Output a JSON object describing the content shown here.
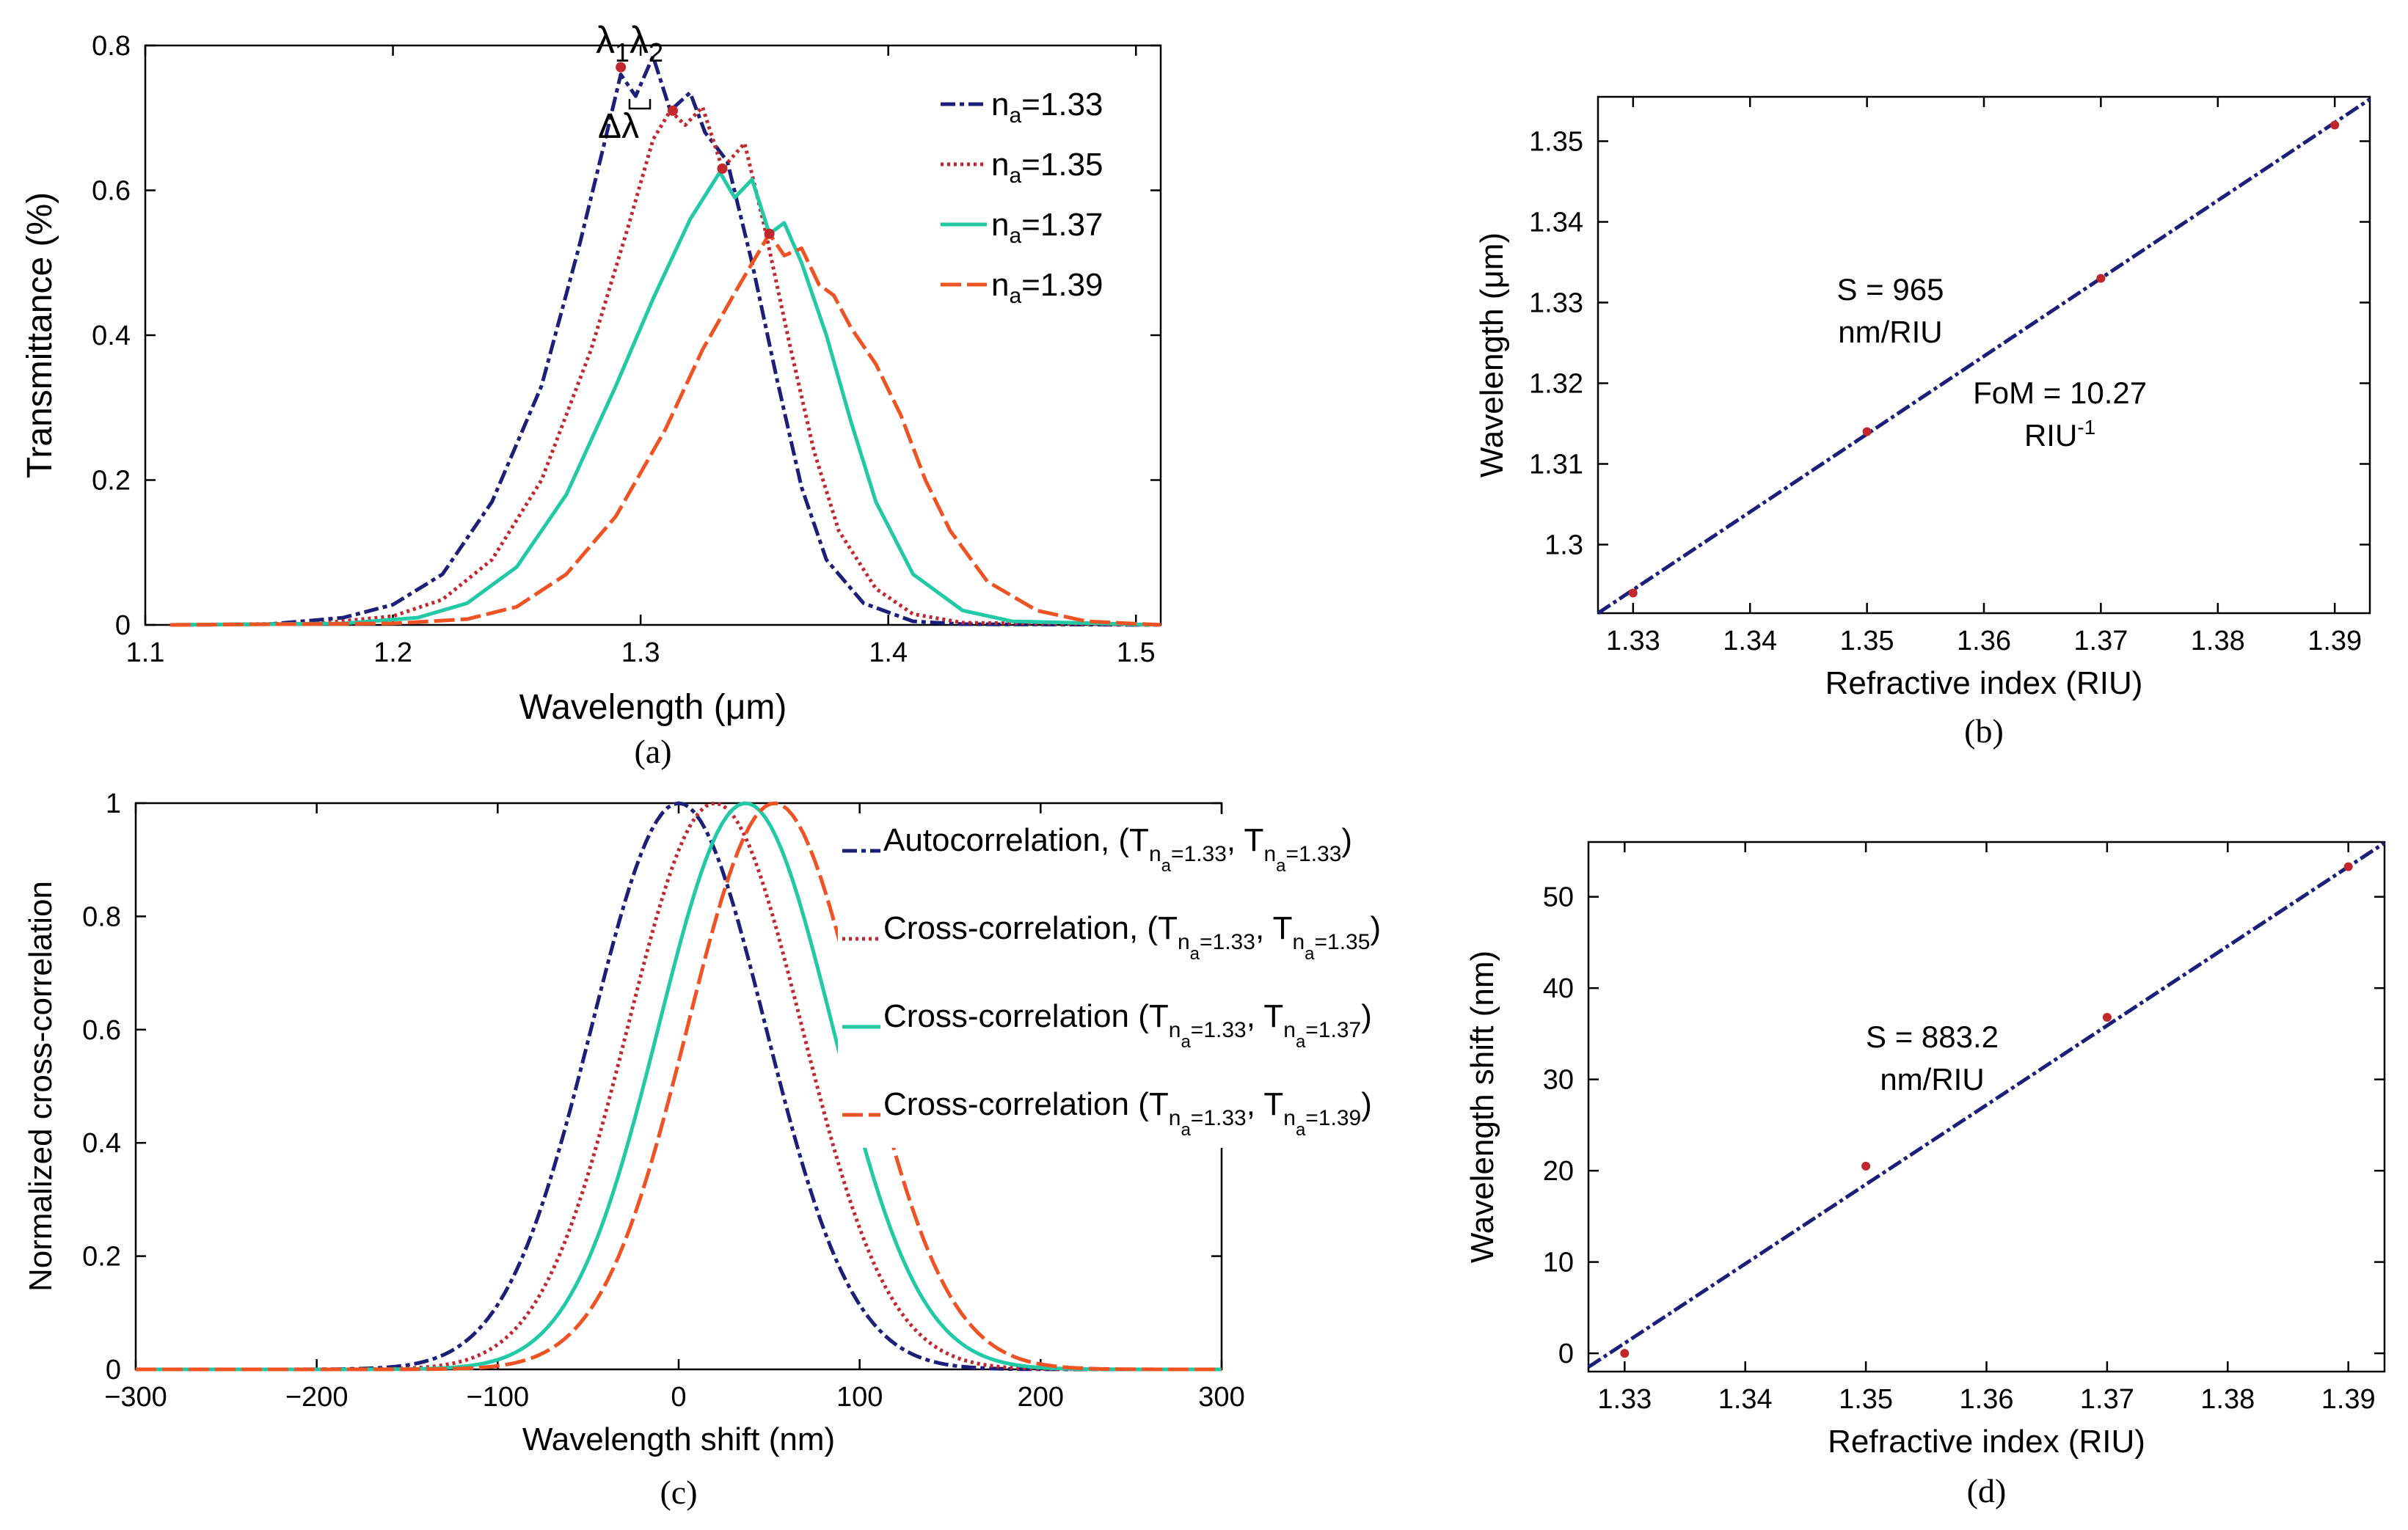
{
  "chart_data": [
    {
      "id": "a",
      "type": "line",
      "caption": "(a)",
      "xlabel": "Wavelength (μm)",
      "ylabel": "Transmittance (%)",
      "xlim": [
        1.1,
        1.51
      ],
      "ylim": [
        0,
        0.8
      ],
      "xticks": [
        1.1,
        1.2,
        1.3,
        1.4,
        1.5
      ],
      "yticks": [
        0,
        0.2,
        0.4,
        0.6,
        0.8
      ],
      "legend": {
        "position": "top-right"
      },
      "series": [
        {
          "name": "n=1.33",
          "label": {
            "base": "n",
            "sub": "a",
            "rest": "=1.33"
          },
          "color": "#1b1f7a",
          "dash": "20 6 6 6",
          "points": [
            [
              1.11,
              0
            ],
            [
              1.15,
              0.001
            ],
            [
              1.18,
              0.01
            ],
            [
              1.2,
              0.028
            ],
            [
              1.22,
              0.07
            ],
            [
              1.24,
              0.17
            ],
            [
              1.26,
              0.33
            ],
            [
              1.275,
              0.52
            ],
            [
              1.285,
              0.66
            ],
            [
              1.292,
              0.76
            ],
            [
              1.298,
              0.73
            ],
            [
              1.305,
              0.785
            ],
            [
              1.312,
              0.71
            ],
            [
              1.32,
              0.735
            ],
            [
              1.326,
              0.68
            ],
            [
              1.335,
              0.64
            ],
            [
              1.345,
              0.5
            ],
            [
              1.355,
              0.34
            ],
            [
              1.365,
              0.19
            ],
            [
              1.375,
              0.09
            ],
            [
              1.39,
              0.03
            ],
            [
              1.41,
              0.005
            ],
            [
              1.43,
              0.001
            ],
            [
              1.51,
              0
            ]
          ]
        },
        {
          "name": "n=1.35",
          "label": {
            "base": "n",
            "sub": "a",
            "rest": "=1.35"
          },
          "color": "#c1272d",
          "dash": "4 5",
          "points": [
            [
              1.11,
              0
            ],
            [
              1.17,
              0.002
            ],
            [
              1.2,
              0.012
            ],
            [
              1.22,
              0.035
            ],
            [
              1.24,
              0.09
            ],
            [
              1.26,
              0.2
            ],
            [
              1.28,
              0.38
            ],
            [
              1.295,
              0.55
            ],
            [
              1.305,
              0.67
            ],
            [
              1.312,
              0.71
            ],
            [
              1.318,
              0.69
            ],
            [
              1.325,
              0.715
            ],
            [
              1.333,
              0.63
            ],
            [
              1.342,
              0.665
            ],
            [
              1.35,
              0.55
            ],
            [
              1.36,
              0.39
            ],
            [
              1.37,
              0.24
            ],
            [
              1.38,
              0.13
            ],
            [
              1.395,
              0.05
            ],
            [
              1.41,
              0.015
            ],
            [
              1.43,
              0.003
            ],
            [
              1.51,
              0
            ]
          ]
        },
        {
          "name": "n=1.37",
          "label": {
            "base": "n",
            "sub": "a",
            "rest": "=1.37"
          },
          "color": "#22c9a6",
          "dash": "",
          "points": [
            [
              1.11,
              0
            ],
            [
              1.18,
              0.002
            ],
            [
              1.21,
              0.01
            ],
            [
              1.23,
              0.03
            ],
            [
              1.25,
              0.08
            ],
            [
              1.27,
              0.18
            ],
            [
              1.29,
              0.33
            ],
            [
              1.305,
              0.45
            ],
            [
              1.32,
              0.56
            ],
            [
              1.332,
              0.625
            ],
            [
              1.338,
              0.59
            ],
            [
              1.345,
              0.615
            ],
            [
              1.352,
              0.54
            ],
            [
              1.358,
              0.555
            ],
            [
              1.365,
              0.5
            ],
            [
              1.375,
              0.4
            ],
            [
              1.385,
              0.28
            ],
            [
              1.395,
              0.17
            ],
            [
              1.41,
              0.07
            ],
            [
              1.43,
              0.02
            ],
            [
              1.45,
              0.005
            ],
            [
              1.51,
              0
            ]
          ]
        },
        {
          "name": "n=1.39",
          "label": {
            "base": "n",
            "sub": "a",
            "rest": "=1.39"
          },
          "color": "#f05323",
          "dash": "28 8",
          "points": [
            [
              1.11,
              0
            ],
            [
              1.2,
              0.002
            ],
            [
              1.23,
              0.008
            ],
            [
              1.25,
              0.025
            ],
            [
              1.27,
              0.07
            ],
            [
              1.29,
              0.15
            ],
            [
              1.31,
              0.27
            ],
            [
              1.325,
              0.38
            ],
            [
              1.34,
              0.47
            ],
            [
              1.352,
              0.54
            ],
            [
              1.358,
              0.51
            ],
            [
              1.365,
              0.52
            ],
            [
              1.372,
              0.47
            ],
            [
              1.378,
              0.455
            ],
            [
              1.385,
              0.41
            ],
            [
              1.395,
              0.36
            ],
            [
              1.405,
              0.29
            ],
            [
              1.415,
              0.2
            ],
            [
              1.425,
              0.13
            ],
            [
              1.44,
              0.06
            ],
            [
              1.46,
              0.02
            ],
            [
              1.48,
              0.005
            ],
            [
              1.51,
              0
            ]
          ]
        }
      ],
      "markers": [
        [
          1.292,
          0.77
        ],
        [
          1.313,
          0.71
        ],
        [
          1.333,
          0.63
        ],
        [
          1.352,
          0.54
        ]
      ],
      "annotations": {
        "lambda": "λ",
        "sub1": "1",
        "sub2": "2",
        "delta": "Δλ"
      }
    },
    {
      "id": "b",
      "type": "scatter",
      "caption": "(b)",
      "xlabel": "Refractive index (RIU)",
      "ylabel": "Wavelength (μm)",
      "xlim": [
        1.327,
        1.393
      ],
      "ylim": [
        1.2915,
        1.3555
      ],
      "xticks": [
        1.33,
        1.34,
        1.35,
        1.36,
        1.37,
        1.38,
        1.39
      ],
      "yticks": [
        1.3,
        1.31,
        1.32,
        1.33,
        1.34,
        1.35
      ],
      "points": [
        [
          1.33,
          1.294
        ],
        [
          1.35,
          1.314
        ],
        [
          1.37,
          1.333
        ],
        [
          1.39,
          1.352
        ]
      ],
      "fit_line": [
        [
          1.327,
          1.2915
        ],
        [
          1.393,
          1.3552
        ]
      ],
      "annotations": [
        {
          "line1": "S = 965",
          "line2": "nm/RIU",
          "at": [
            1.352,
            1.3303
          ]
        },
        {
          "line1": "FoM = 10.27",
          "line2": "RIU",
          "sup": "-1",
          "at": [
            1.3665,
            1.3175
          ]
        }
      ]
    },
    {
      "id": "c",
      "type": "line",
      "caption": "(c)",
      "xlabel": "Wavelength shift (nm)",
      "ylabel": "Normalized cross-correlation",
      "xlim": [
        -300,
        300
      ],
      "ylim": [
        0,
        1
      ],
      "xticks": [
        -300,
        -200,
        -100,
        0,
        100,
        200,
        300
      ],
      "yticks": [
        0,
        0.2,
        0.4,
        0.6,
        0.8,
        1
      ],
      "sigma": 48,
      "legend": {
        "position": "top-right"
      },
      "series": [
        {
          "name": "Autocorrelation",
          "center": 0,
          "color": "#1b1f7a",
          "dash": "20 6 6 6",
          "label": {
            "prefix": "Autocorrelation, (T",
            "sub1": "n",
            "subsub1": "a",
            "sub1rest": "=1.33",
            "mid": ", T",
            "sub2": "n",
            "subsub2": "a",
            "sub2rest": "=1.33",
            "end": ")"
          }
        },
        {
          "name": "Cross-correlation 1.35",
          "center": 20,
          "color": "#c1272d",
          "dash": "4 5",
          "label": {
            "prefix": "Cross-correlation, (T",
            "sub1": "n",
            "subsub1": "a",
            "sub1rest": "=1.33",
            "mid": ", T",
            "sub2": "n",
            "subsub2": "a",
            "sub2rest": "=1.35",
            "end": ")"
          }
        },
        {
          "name": "Cross-correlation 1.37",
          "center": 37,
          "color": "#22c9a6",
          "dash": "",
          "label": {
            "prefix": "Cross-correlation (T",
            "sub1": "n",
            "subsub1": "a",
            "sub1rest": "=1.33",
            "mid": ", T",
            "sub2": "n",
            "subsub2": "a",
            "sub2rest": "=1.37",
            "end": ")"
          }
        },
        {
          "name": "Cross-correlation 1.39",
          "center": 53,
          "color": "#f05323",
          "dash": "28 8",
          "label": {
            "prefix": "Cross-correlation (T",
            "sub1": "n",
            "subsub1": "a",
            "sub1rest": "=1.33",
            "mid": ", T",
            "sub2": "n",
            "subsub2": "a",
            "sub2rest": "=1.39",
            "end": ")"
          }
        }
      ]
    },
    {
      "id": "d",
      "type": "scatter",
      "caption": "(d)",
      "xlabel": "Refractive index (RIU)",
      "ylabel": "Wavelength shift (nm)",
      "xlim": [
        1.327,
        1.393
      ],
      "ylim": [
        -2,
        56
      ],
      "xticks": [
        1.33,
        1.34,
        1.35,
        1.36,
        1.37,
        1.38,
        1.39
      ],
      "yticks": [
        0,
        10,
        20,
        30,
        40,
        50
      ],
      "points": [
        [
          1.33,
          0
        ],
        [
          1.35,
          20.5
        ],
        [
          1.37,
          36.8
        ],
        [
          1.39,
          53.3
        ]
      ],
      "fit_line": [
        [
          1.327,
          -1.5
        ],
        [
          1.393,
          55.9
        ]
      ],
      "annotations": [
        {
          "line1": "S = 883.2",
          "line2": "nm/RIU",
          "at": [
            1.3555,
            33.5
          ]
        }
      ]
    }
  ]
}
